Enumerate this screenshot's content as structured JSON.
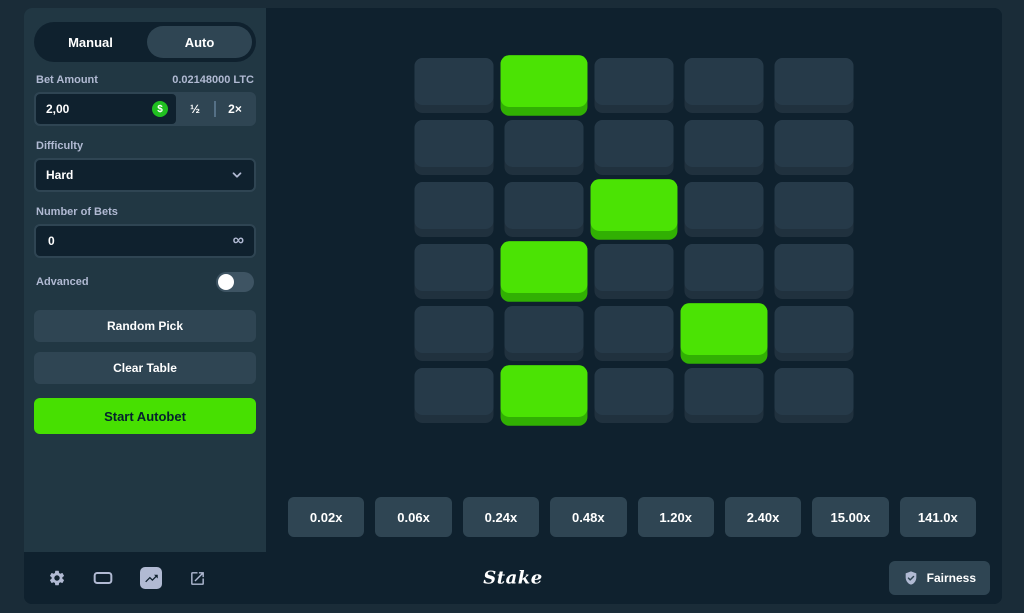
{
  "sidebar": {
    "tabs": {
      "manual": "Manual",
      "auto": "Auto",
      "active": "auto"
    },
    "bet": {
      "label": "Bet Amount",
      "balance": "0.02148000 LTC",
      "value": "2,00",
      "currency_symbol": "$",
      "half": "½",
      "double": "2×"
    },
    "difficulty": {
      "label": "Difficulty",
      "value": "Hard"
    },
    "bets": {
      "label": "Number of Bets",
      "value": "0",
      "infinity": "∞"
    },
    "advanced": {
      "label": "Advanced",
      "enabled": false
    },
    "buttons": {
      "random_pick": "Random Pick",
      "clear_table": "Clear Table",
      "start_autobet": "Start Autobet"
    }
  },
  "board": {
    "rows": 6,
    "cols": 5,
    "selected_cells": [
      {
        "row": 1,
        "col": 2
      },
      {
        "row": 3,
        "col": 3
      },
      {
        "row": 4,
        "col": 2
      },
      {
        "row": 5,
        "col": 4
      },
      {
        "row": 6,
        "col": 2
      }
    ]
  },
  "multipliers": [
    "0.02x",
    "0.06x",
    "0.24x",
    "0.48x",
    "1.20x",
    "2.40x",
    "15.00x",
    "141.0x"
  ],
  "footer": {
    "brand": "Stake",
    "fairness_label": "Fairness",
    "icons": [
      "gear-icon",
      "theatre-mode-icon",
      "live-stats-icon",
      "external-chart-icon"
    ]
  },
  "colors": {
    "page_bg": "#1a2c38",
    "card_bg": "#0f212e",
    "sidebar_bg": "#213743",
    "slate": "#2f4553",
    "label_grey": "#b1bad3",
    "accent_green": "#47e001",
    "tile_face": "#263a49",
    "tile_edge": "#20313e",
    "picked_face": "#4be304",
    "picked_edge": "#31b003"
  }
}
